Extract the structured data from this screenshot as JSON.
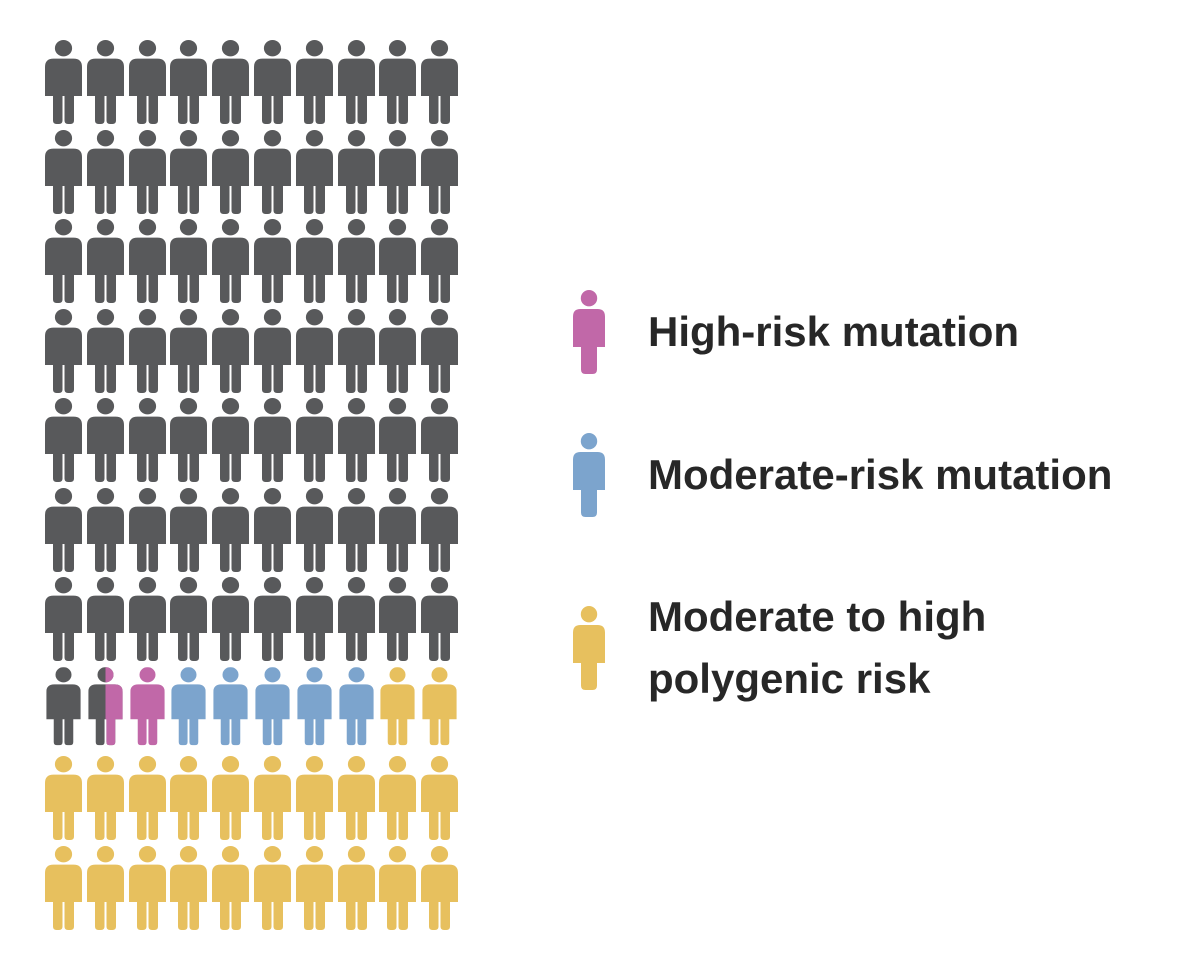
{
  "chart_data": {
    "type": "pictogram",
    "title": "",
    "unit_icon": "person",
    "total_icons": 100,
    "grid": {
      "rows": 10,
      "cols": 10
    },
    "legend_position": "right",
    "split_cell_notation": "leftHalfKey|rightHalfKey",
    "series": [
      {
        "key": "gray",
        "label": "",
        "color": "#58595B",
        "count": 71.5
      },
      {
        "key": "pink",
        "label": "High-risk mutation",
        "color": "#C168A8",
        "count": 1.5
      },
      {
        "key": "blue",
        "label": "Moderate-risk mutation",
        "color": "#7CA4CD",
        "count": 5
      },
      {
        "key": "yellow",
        "label": "Moderate to high polygenic risk",
        "color": "#E7C05E",
        "count": 22
      }
    ],
    "small_row_index": 7,
    "rows": [
      [
        "gray",
        "gray",
        "gray",
        "gray",
        "gray",
        "gray",
        "gray",
        "gray",
        "gray",
        "gray"
      ],
      [
        "gray",
        "gray",
        "gray",
        "gray",
        "gray",
        "gray",
        "gray",
        "gray",
        "gray",
        "gray"
      ],
      [
        "gray",
        "gray",
        "gray",
        "gray",
        "gray",
        "gray",
        "gray",
        "gray",
        "gray",
        "gray"
      ],
      [
        "gray",
        "gray",
        "gray",
        "gray",
        "gray",
        "gray",
        "gray",
        "gray",
        "gray",
        "gray"
      ],
      [
        "gray",
        "gray",
        "gray",
        "gray",
        "gray",
        "gray",
        "gray",
        "gray",
        "gray",
        "gray"
      ],
      [
        "gray",
        "gray",
        "gray",
        "gray",
        "gray",
        "gray",
        "gray",
        "gray",
        "gray",
        "gray"
      ],
      [
        "gray",
        "gray",
        "gray",
        "gray",
        "gray",
        "gray",
        "gray",
        "gray",
        "gray",
        "gray"
      ],
      [
        "gray",
        "gray|pink",
        "pink",
        "blue",
        "blue",
        "blue",
        "blue",
        "blue",
        "yellow",
        "yellow"
      ],
      [
        "yellow",
        "yellow",
        "yellow",
        "yellow",
        "yellow",
        "yellow",
        "yellow",
        "yellow",
        "yellow",
        "yellow"
      ],
      [
        "yellow",
        "yellow",
        "yellow",
        "yellow",
        "yellow",
        "yellow",
        "yellow",
        "yellow",
        "yellow",
        "yellow"
      ]
    ]
  },
  "legend": {
    "text_color": "#272727",
    "items": [
      {
        "label": "High-risk mutation",
        "color": "#C168A8"
      },
      {
        "label": "Moderate-risk mutation",
        "color": "#7CA4CD"
      },
      {
        "label": "Moderate to high\npolygenic risk",
        "color": "#E7C05E"
      }
    ]
  }
}
